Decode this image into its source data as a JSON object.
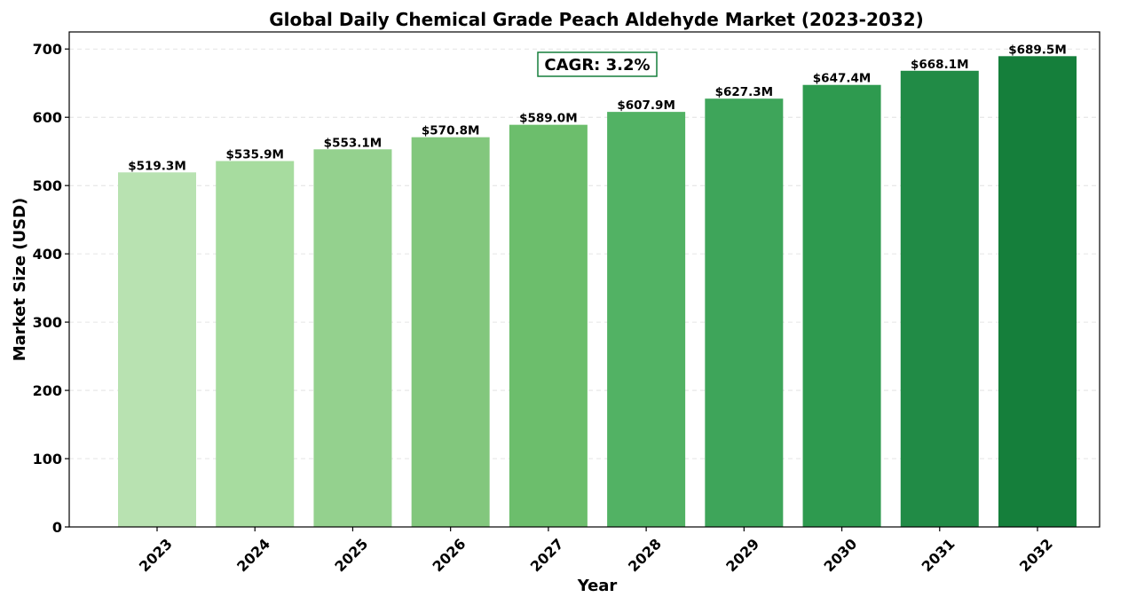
{
  "chart_data": {
    "type": "bar",
    "title": "Global Daily Chemical Grade Peach Aldehyde Market (2023-2032)",
    "xlabel": "Year",
    "ylabel": "Market Size (USD)",
    "categories": [
      "2023",
      "2024",
      "2025",
      "2026",
      "2027",
      "2028",
      "2029",
      "2030",
      "2031",
      "2032"
    ],
    "values": [
      519.3,
      535.9,
      553.1,
      570.8,
      589.0,
      607.9,
      627.3,
      647.4,
      668.1,
      689.5
    ],
    "data_labels": [
      "$519.3M",
      "$535.9M",
      "$553.1M",
      "$570.8M",
      "$589.0M",
      "$607.9M",
      "$627.3M",
      "$647.4M",
      "$668.1M",
      "$689.5M"
    ],
    "ylim": [
      0,
      725
    ],
    "yticks": [
      0,
      100,
      200,
      300,
      400,
      500,
      600,
      700
    ],
    "grid": true,
    "annotation": "CAGR: 3.2%",
    "bar_colors": [
      "#b8e2b1",
      "#a7dc9f",
      "#94d18e",
      "#82c77d",
      "#6cbe6c",
      "#52b264",
      "#3ea55a",
      "#2e9a4f",
      "#218b46",
      "#157f3b"
    ],
    "annotation_border_color": "#157f3b"
  }
}
